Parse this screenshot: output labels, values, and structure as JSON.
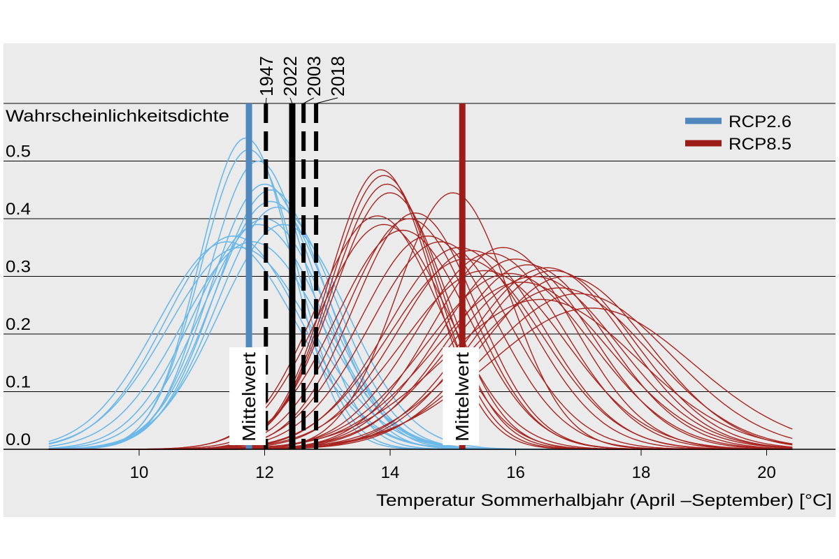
{
  "chart_data": {
    "type": "line",
    "title": "",
    "ylabel": "Wahrscheinlichkeitsdichte",
    "xlabel": "Temperatur Sommerhalbjahr (April –September) [°C]",
    "xlim": [
      8.56,
      20.43
    ],
    "ylim": [
      0,
      0.6
    ],
    "x_ticks": [
      10,
      12,
      14,
      16,
      18,
      20
    ],
    "x_tick_labels": [
      "10",
      "12",
      "14",
      "16",
      "18",
      "20"
    ],
    "y_ticks": [
      0.0,
      0.1,
      0.2,
      0.3,
      0.4,
      0.5,
      0.6
    ],
    "y_tick_labels": [
      "0.0",
      "0.1",
      "0.2",
      "0.3",
      "0.4",
      "0.5",
      ""
    ],
    "grid": true,
    "legend_position": "top-right",
    "colors": {
      "rcp26": "#5088bd",
      "rcp26_curves": "#6cb8e8",
      "rcp85": "#9b1c18",
      "rcp85_curves": "#a82420",
      "background": "#ebebeb"
    },
    "series": [
      {
        "name": "RCP2.6",
        "kind": "gaussian-ensemble",
        "members": [
          {
            "mean": 11.7,
            "peak": 0.54
          },
          {
            "mean": 11.75,
            "peak": 0.52
          },
          {
            "mean": 11.9,
            "peak": 0.5
          },
          {
            "mean": 12.0,
            "peak": 0.46
          },
          {
            "mean": 12.1,
            "peak": 0.45
          },
          {
            "mean": 12.2,
            "peak": 0.42
          },
          {
            "mean": 12.1,
            "peak": 0.43
          },
          {
            "mean": 11.9,
            "peak": 0.39
          },
          {
            "mean": 12.0,
            "peak": 0.4
          },
          {
            "mean": 11.5,
            "peak": 0.37
          },
          {
            "mean": 11.4,
            "peak": 0.36
          },
          {
            "mean": 11.8,
            "peak": 0.36
          },
          {
            "mean": 12.3,
            "peak": 0.39
          },
          {
            "mean": 11.6,
            "peak": 0.35
          }
        ],
        "ensemble_mean": 11.75
      },
      {
        "name": "RCP8.5",
        "kind": "gaussian-ensemble",
        "members": [
          {
            "mean": 13.85,
            "peak": 0.485
          },
          {
            "mean": 13.9,
            "peak": 0.475
          },
          {
            "mean": 13.95,
            "peak": 0.46
          },
          {
            "mean": 14.0,
            "peak": 0.445
          },
          {
            "mean": 13.8,
            "peak": 0.405
          },
          {
            "mean": 13.9,
            "peak": 0.39
          },
          {
            "mean": 14.4,
            "peak": 0.41
          },
          {
            "mean": 14.3,
            "peak": 0.4
          },
          {
            "mean": 15.0,
            "peak": 0.445
          },
          {
            "mean": 14.6,
            "peak": 0.37
          },
          {
            "mean": 15.1,
            "peak": 0.35
          },
          {
            "mean": 15.3,
            "peak": 0.345
          },
          {
            "mean": 15.8,
            "peak": 0.35
          },
          {
            "mean": 15.6,
            "peak": 0.34
          },
          {
            "mean": 16.0,
            "peak": 0.33
          },
          {
            "mean": 16.2,
            "peak": 0.32
          },
          {
            "mean": 16.5,
            "peak": 0.315
          },
          {
            "mean": 16.6,
            "peak": 0.31
          },
          {
            "mean": 16.3,
            "peak": 0.3
          },
          {
            "mean": 16.8,
            "peak": 0.3
          },
          {
            "mean": 17.2,
            "peak": 0.245
          },
          {
            "mean": 17.0,
            "peak": 0.27
          },
          {
            "mean": 15.5,
            "peak": 0.31
          },
          {
            "mean": 16.1,
            "peak": 0.29
          },
          {
            "mean": 14.8,
            "peak": 0.36
          },
          {
            "mean": 15.9,
            "peak": 0.305
          },
          {
            "mean": 16.7,
            "peak": 0.28
          },
          {
            "mean": 14.2,
            "peak": 0.38
          },
          {
            "mean": 15.2,
            "peak": 0.33
          },
          {
            "mean": 16.4,
            "peak": 0.26
          }
        ],
        "ensemble_mean": 15.15
      }
    ],
    "mean_label": "Mittelwert",
    "observed_years": [
      {
        "year": "1947",
        "value": 12.02,
        "style": "dashed"
      },
      {
        "year": "2022",
        "value": 12.44,
        "style": "solid"
      },
      {
        "year": "2003",
        "value": 12.62,
        "style": "dashed"
      },
      {
        "year": "2018",
        "value": 12.82,
        "style": "dashed"
      }
    ],
    "legend": [
      "RCP2.6",
      "RCP8.5"
    ]
  }
}
